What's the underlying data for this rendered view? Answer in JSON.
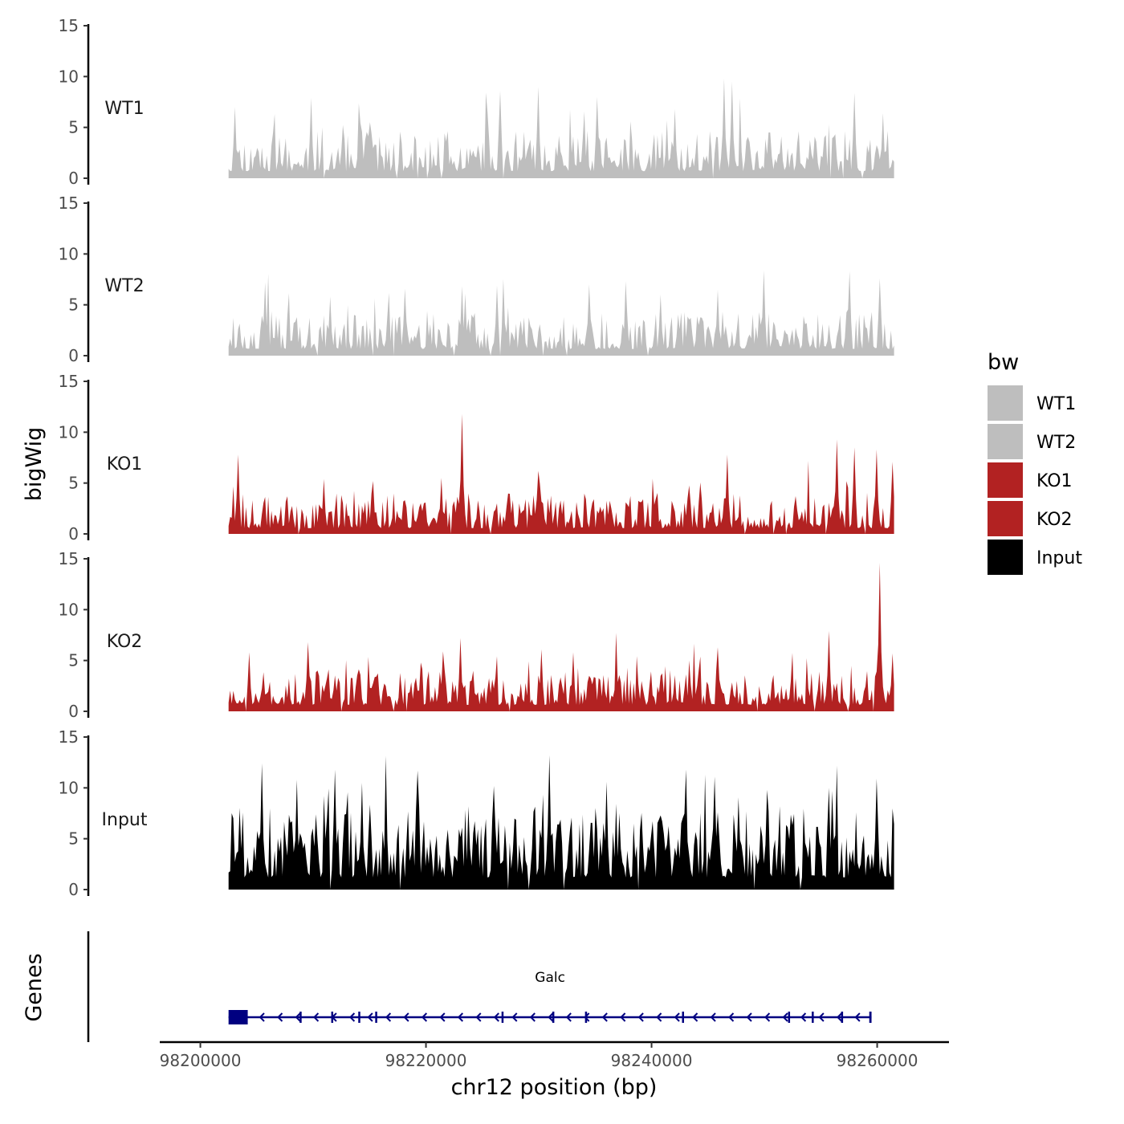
{
  "chart_data": {
    "type": "area",
    "title": "",
    "xlabel": "chr12 position (bp)",
    "ylabel": "bigWig",
    "genes_label": "Genes",
    "xlim": [
      98196900,
      98264800
    ],
    "x_range_data": [
      98202500,
      98261500
    ],
    "xticks": [
      98200000,
      98220000,
      98240000,
      98260000
    ],
    "xtick_labels": [
      "98200000",
      "98220000",
      "98240000",
      "98260000"
    ],
    "ylim": [
      0,
      15
    ],
    "yticks": [
      0,
      5,
      10,
      15
    ],
    "ytick_labels": [
      "0",
      "5",
      "10",
      "15"
    ],
    "legend": {
      "title": "bw",
      "position": "right",
      "entries": [
        {
          "label": "WT1",
          "color": "#bebebe"
        },
        {
          "label": "WT2",
          "color": "#bebebe"
        },
        {
          "label": "KO1",
          "color": "#b22222"
        },
        {
          "label": "KO2",
          "color": "#b22222"
        },
        {
          "label": "Input",
          "color": "#000000"
        }
      ]
    },
    "series": [
      {
        "name": "WT1",
        "color": "#bebebe",
        "baseline": 2.0,
        "amp": 1.8,
        "seed": 11,
        "peaks": [
          [
            98203000,
            7.0
          ],
          [
            98209800,
            7.9
          ],
          [
            98215100,
            5.5
          ],
          [
            98226600,
            8.6
          ],
          [
            98230000,
            9.0
          ],
          [
            98235200,
            8.0
          ],
          [
            98242000,
            6.8
          ],
          [
            98246500,
            9.8
          ],
          [
            98247100,
            9.5
          ],
          [
            98258000,
            8.4
          ],
          [
            98260500,
            6.4
          ]
        ]
      },
      {
        "name": "WT2",
        "color": "#bebebe",
        "baseline": 1.9,
        "amp": 1.7,
        "seed": 23,
        "peaks": [
          [
            98205700,
            7.2
          ],
          [
            98211500,
            5.8
          ],
          [
            98218200,
            6.6
          ],
          [
            98223500,
            6.1
          ],
          [
            98226300,
            6.9
          ],
          [
            98234500,
            7.0
          ],
          [
            98240800,
            6.0
          ],
          [
            98245800,
            6.5
          ],
          [
            98249900,
            8.4
          ],
          [
            98257500,
            8.3
          ],
          [
            98260300,
            7.6
          ]
        ]
      },
      {
        "name": "KO1",
        "color": "#b22222",
        "baseline": 1.6,
        "amp": 1.6,
        "seed": 37,
        "peaks": [
          [
            98203300,
            7.8
          ],
          [
            98211000,
            5.4
          ],
          [
            98215300,
            5.2
          ],
          [
            98221300,
            5.5
          ],
          [
            98223200,
            11.8
          ],
          [
            98230000,
            6.2
          ],
          [
            98246700,
            7.8
          ],
          [
            98256500,
            9.3
          ],
          [
            98258000,
            8.5
          ],
          [
            98259900,
            8.3
          ],
          [
            98261300,
            7.1
          ]
        ]
      },
      {
        "name": "KO2",
        "color": "#b22222",
        "baseline": 1.8,
        "amp": 1.6,
        "seed": 53,
        "peaks": [
          [
            98204300,
            5.8
          ],
          [
            98209600,
            6.8
          ],
          [
            98221500,
            5.9
          ],
          [
            98223100,
            7.2
          ],
          [
            98230300,
            6.1
          ],
          [
            98233000,
            5.8
          ],
          [
            98245800,
            6.3
          ],
          [
            98255700,
            7.9
          ],
          [
            98260300,
            14.6
          ],
          [
            98261300,
            5.7
          ]
        ]
      },
      {
        "name": "Input",
        "color": "#000000",
        "baseline": 3.4,
        "amp": 3.2,
        "seed": 71,
        "peaks": [
          [
            98205500,
            12.4
          ],
          [
            98208500,
            10.8
          ],
          [
            98214300,
            10.5
          ],
          [
            98219300,
            11.7
          ],
          [
            98231000,
            13.2
          ],
          [
            98236000,
            10.6
          ],
          [
            98243000,
            11.8
          ],
          [
            98250300,
            9.8
          ],
          [
            98255700,
            10.0
          ],
          [
            98259900,
            10.9
          ]
        ]
      }
    ],
    "gene": {
      "name": "Galc",
      "start": 98202500,
      "end": 98259500,
      "strand": "-",
      "color": "#000080",
      "exons": [
        [
          98202500,
          98204200
        ],
        [
          98208800,
          98208950
        ],
        [
          98211600,
          98211750
        ],
        [
          98214000,
          98214150
        ],
        [
          98215500,
          98215650
        ],
        [
          98226700,
          98226850
        ],
        [
          98231200,
          98231350
        ],
        [
          98234100,
          98234250
        ],
        [
          98242700,
          98242850
        ],
        [
          98252100,
          98252250
        ],
        [
          98254200,
          98254350
        ],
        [
          98256800,
          98256950
        ],
        [
          98259300,
          98259500
        ]
      ]
    }
  }
}
